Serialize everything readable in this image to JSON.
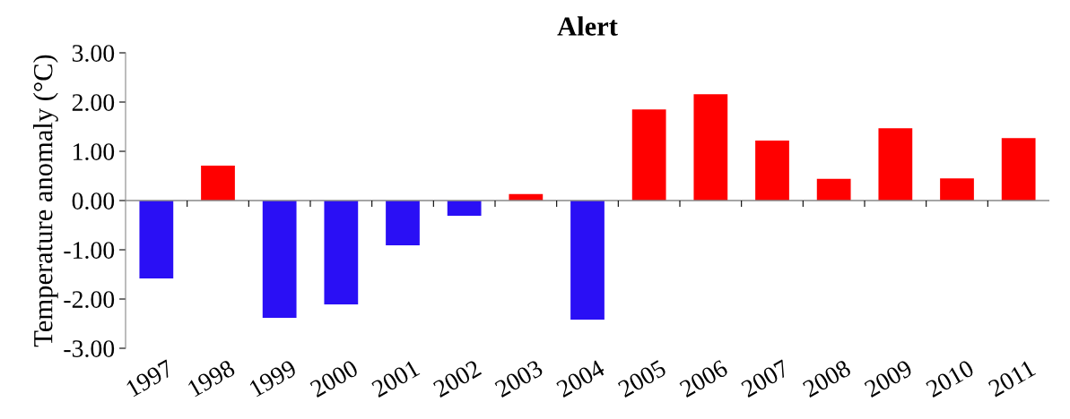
{
  "chart_data": {
    "type": "bar",
    "title": "Alert",
    "ylabel": "Temperature anomaly (°C)",
    "categories": [
      "1997",
      "1998",
      "1999",
      "2000",
      "2001",
      "2002",
      "2003",
      "2004",
      "2005",
      "2006",
      "2007",
      "2008",
      "2009",
      "2010",
      "2011"
    ],
    "values": [
      -1.58,
      0.71,
      -2.38,
      -2.11,
      -0.91,
      -0.31,
      0.13,
      -2.42,
      1.85,
      2.16,
      1.22,
      0.44,
      1.47,
      0.45,
      1.27
    ],
    "colors": [
      "#2a0ff5",
      "#ff0000",
      "#2a0ff5",
      "#2a0ff5",
      "#2a0ff5",
      "#2a0ff5",
      "#ff0000",
      "#2a0ff5",
      "#ff0000",
      "#ff0000",
      "#ff0000",
      "#ff0000",
      "#ff0000",
      "#ff0000",
      "#ff0000"
    ],
    "ylim": [
      -3,
      3
    ],
    "yticks": [
      {
        "value": -3,
        "label": "-3.00"
      },
      {
        "value": -2,
        "label": "-2.00"
      },
      {
        "value": -1,
        "label": "-1.00"
      },
      {
        "value": 0,
        "label": "0.00"
      },
      {
        "value": 1,
        "label": "1.00"
      },
      {
        "value": 2,
        "label": "2.00"
      },
      {
        "value": 3,
        "label": "3.00"
      }
    ],
    "ref_lines": [
      {
        "axis": "y",
        "value": 0,
        "color": "#888888"
      }
    ],
    "grid": false,
    "legend": false
  }
}
